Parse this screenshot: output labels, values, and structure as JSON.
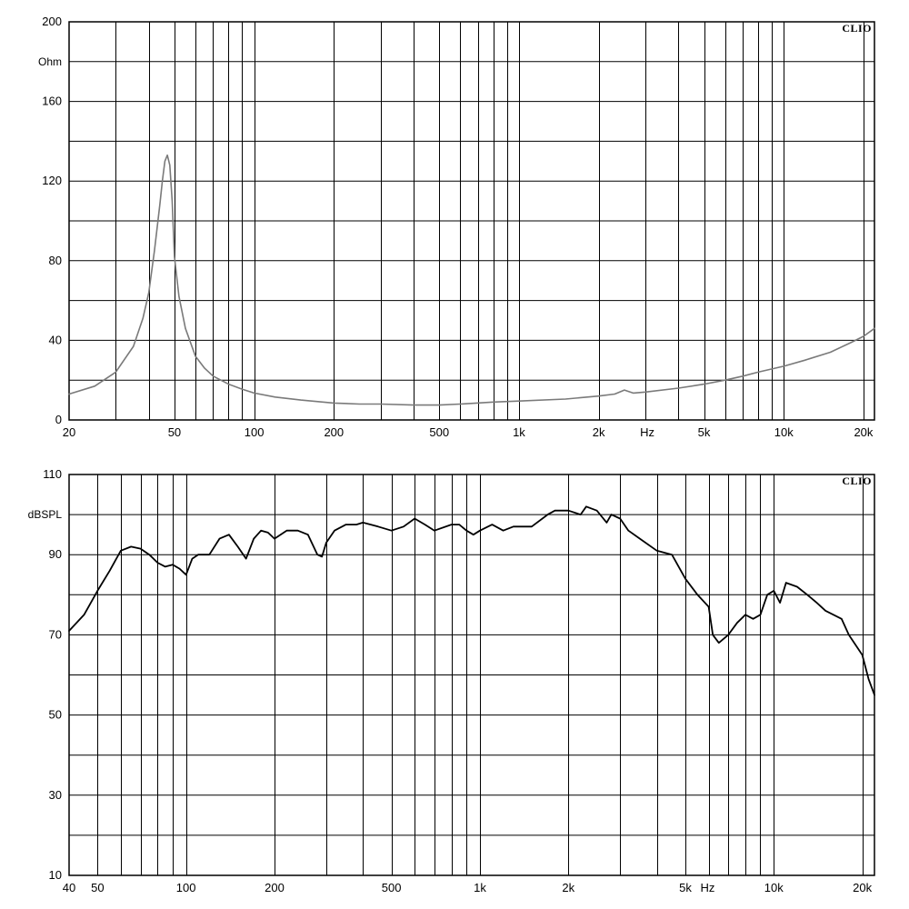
{
  "chart_data": [
    {
      "type": "line",
      "brand": "CLIO",
      "ylabel": "Ohm",
      "xlabel": "Hz",
      "xscale": "log",
      "xlim": [
        20,
        22000
      ],
      "ylim": [
        0,
        200
      ],
      "grid": true,
      "y_ticks": [
        0,
        40,
        80,
        120,
        160,
        200
      ],
      "y_gridlines": [
        20,
        40,
        60,
        80,
        100,
        120,
        140,
        160,
        180
      ],
      "x_ticks": [
        {
          "value": 20,
          "label": "20"
        },
        {
          "value": 50,
          "label": "50"
        },
        {
          "value": 100,
          "label": "100"
        },
        {
          "value": 200,
          "label": "200"
        },
        {
          "value": 500,
          "label": "500"
        },
        {
          "value": 1000,
          "label": "1k"
        },
        {
          "value": 2000,
          "label": "2k"
        },
        {
          "value": 5000,
          "label": "5k"
        },
        {
          "value": 10000,
          "label": "10k"
        },
        {
          "value": 20000,
          "label": "20k"
        }
      ],
      "x_gridlines": [
        30,
        40,
        50,
        60,
        70,
        80,
        90,
        100,
        200,
        300,
        400,
        500,
        600,
        700,
        800,
        900,
        1000,
        2000,
        3000,
        4000,
        5000,
        6000,
        7000,
        8000,
        9000,
        10000,
        20000
      ],
      "unit_tick": {
        "value": 3050,
        "label": "Hz"
      },
      "line_color": "#7a7a7a",
      "series": [
        {
          "x": [
            20,
            25,
            30,
            35,
            38,
            40,
            42,
            44,
            45,
            46,
            47,
            48,
            49,
            50,
            52,
            55,
            60,
            65,
            70,
            80,
            90,
            100,
            120,
            150,
            200,
            250,
            300,
            400,
            500,
            600,
            800,
            1000,
            1500,
            2000,
            2300,
            2500,
            2700,
            3000,
            4000,
            5000,
            6000,
            7000,
            8000,
            10000,
            12000,
            15000,
            18000,
            20000,
            22000
          ],
          "y": [
            13,
            17,
            24,
            37,
            51,
            64,
            85,
            108,
            120,
            130,
            133,
            128,
            110,
            82,
            62,
            46,
            32,
            26,
            22,
            18,
            15.5,
            13.5,
            11.5,
            10,
            8.5,
            8,
            8,
            7.5,
            7.5,
            8,
            9,
            9.5,
            10.5,
            12,
            13,
            15,
            13.5,
            14,
            16,
            18,
            20,
            22,
            24,
            27,
            30,
            34,
            39,
            42,
            46
          ]
        }
      ]
    },
    {
      "type": "line",
      "brand": "CLIO",
      "ylabel": "dBSPL",
      "xlabel": "Hz",
      "xscale": "log",
      "xlim": [
        40,
        22000
      ],
      "ylim": [
        10,
        110
      ],
      "grid": true,
      "y_ticks": [
        10,
        30,
        50,
        70,
        90,
        110
      ],
      "y_gridlines": [
        20,
        30,
        40,
        50,
        60,
        70,
        80,
        90,
        100
      ],
      "x_ticks": [
        {
          "value": 40,
          "label": "40"
        },
        {
          "value": 50,
          "label": "50"
        },
        {
          "value": 100,
          "label": "100"
        },
        {
          "value": 200,
          "label": "200"
        },
        {
          "value": 500,
          "label": "500"
        },
        {
          "value": 1000,
          "label": "1k"
        },
        {
          "value": 2000,
          "label": "2k"
        },
        {
          "value": 5000,
          "label": "5k"
        },
        {
          "value": 10000,
          "label": "10k"
        },
        {
          "value": 20000,
          "label": "20k"
        }
      ],
      "x_gridlines": [
        50,
        60,
        70,
        80,
        90,
        100,
        200,
        300,
        400,
        500,
        600,
        700,
        800,
        900,
        1000,
        2000,
        3000,
        4000,
        5000,
        6000,
        7000,
        8000,
        9000,
        10000,
        20000
      ],
      "unit_tick": {
        "value": 5950,
        "label": "Hz"
      },
      "line_color": "#000000",
      "series": [
        {
          "x": [
            40,
            45,
            50,
            55,
            60,
            65,
            70,
            75,
            80,
            85,
            90,
            95,
            100,
            105,
            110,
            120,
            130,
            140,
            150,
            160,
            170,
            180,
            190,
            200,
            220,
            240,
            260,
            280,
            290,
            300,
            320,
            350,
            380,
            400,
            450,
            500,
            550,
            600,
            650,
            700,
            800,
            850,
            900,
            950,
            1000,
            1100,
            1200,
            1300,
            1500,
            1700,
            1800,
            2000,
            2200,
            2300,
            2500,
            2700,
            2800,
            3000,
            3200,
            3500,
            4000,
            4500,
            5000,
            5500,
            6000,
            6200,
            6500,
            7000,
            7500,
            8000,
            8500,
            9000,
            9500,
            10000,
            10500,
            11000,
            12000,
            13000,
            14000,
            15000,
            17000,
            18000,
            20000,
            21000,
            22000
          ],
          "y": [
            71,
            75,
            81,
            86,
            91,
            92,
            91.5,
            90,
            88,
            87,
            87.5,
            86.5,
            85,
            89,
            90,
            90,
            94,
            95,
            92,
            89,
            94,
            96,
            95.5,
            94,
            96,
            96,
            95,
            90,
            89.5,
            93,
            96,
            97.5,
            97.5,
            98,
            97,
            96,
            97,
            99,
            97.5,
            96,
            97.5,
            97.5,
            96,
            95,
            96,
            97.5,
            96,
            97,
            97,
            100,
            101,
            101,
            100,
            102,
            101,
            98,
            100,
            99,
            96,
            94,
            91,
            90,
            84,
            80,
            77,
            70,
            68,
            70,
            73,
            75,
            74,
            75,
            80,
            81,
            78,
            83,
            82,
            80,
            78,
            76,
            74,
            70,
            65,
            59,
            55
          ]
        }
      ]
    }
  ]
}
